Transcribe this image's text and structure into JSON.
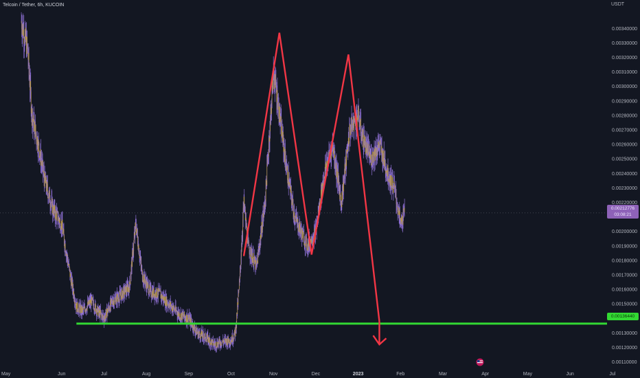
{
  "header": {
    "title": "Telcoin / Tether, 6h, KUCOIN",
    "currency": "USDT"
  },
  "badges": {
    "current_price": "0.00212776",
    "current_price_sub": "03:08:21",
    "support_price": "0.00136440"
  },
  "colors": {
    "background": "#131722",
    "candle_body": "#b99a42",
    "candle_wick": "#8d6fd1",
    "pattern_line": "#f23645",
    "support_line": "#33d933",
    "price_badge": "#8e62b8"
  },
  "chart_data": {
    "type": "candlestick",
    "title": "Telcoin / Tether, 6h, KUCOIN",
    "ylabel": "USDT",
    "ylim": [
      0.00106,
      0.00352
    ],
    "yticks": [
      "0.00110000",
      "0.00120000",
      "0.00130000",
      "0.00140000",
      "0.00150000",
      "0.00160000",
      "0.00170000",
      "0.00180000",
      "0.00190000",
      "0.00200000",
      "0.00210000",
      "0.00220000",
      "0.00230000",
      "0.00240000",
      "0.00250000",
      "0.00260000",
      "0.00270000",
      "0.00280000",
      "0.00290000",
      "0.00300000",
      "0.00310000",
      "0.00320000",
      "0.00330000",
      "0.00340000"
    ],
    "xticks": [
      {
        "label": "May",
        "bold": false
      },
      {
        "label": "Jun",
        "bold": false
      },
      {
        "label": "Jul",
        "bold": false
      },
      {
        "label": "Aug",
        "bold": false
      },
      {
        "label": "Sep",
        "bold": false
      },
      {
        "label": "Oct",
        "bold": false
      },
      {
        "label": "Nov",
        "bold": false
      },
      {
        "label": "Dec",
        "bold": false
      },
      {
        "label": "2023",
        "bold": true
      },
      {
        "label": "Feb",
        "bold": false
      },
      {
        "label": "Mar",
        "bold": false
      },
      {
        "label": "Apr",
        "bold": false
      },
      {
        "label": "May",
        "bold": false
      },
      {
        "label": "Jun",
        "bold": false
      },
      {
        "label": "Jul",
        "bold": false
      }
    ],
    "price_path": [
      {
        "t": 0.05,
        "p": 0.00345
      },
      {
        "t": 0.2,
        "p": 0.00325
      },
      {
        "t": 0.3,
        "p": 0.0028
      },
      {
        "t": 0.45,
        "p": 0.0026
      },
      {
        "t": 0.6,
        "p": 0.00235
      },
      {
        "t": 0.8,
        "p": 0.00215
      },
      {
        "t": 1.0,
        "p": 0.00205
      },
      {
        "t": 1.2,
        "p": 0.0017
      },
      {
        "t": 1.35,
        "p": 0.00148
      },
      {
        "t": 1.5,
        "p": 0.00145
      },
      {
        "t": 1.7,
        "p": 0.00152
      },
      {
        "t": 1.85,
        "p": 0.00145
      },
      {
        "t": 2.0,
        "p": 0.0014
      },
      {
        "t": 2.2,
        "p": 0.00152
      },
      {
        "t": 2.4,
        "p": 0.00156
      },
      {
        "t": 2.6,
        "p": 0.00162
      },
      {
        "t": 2.75,
        "p": 0.00205
      },
      {
        "t": 2.9,
        "p": 0.0017
      },
      {
        "t": 3.1,
        "p": 0.00158
      },
      {
        "t": 3.3,
        "p": 0.00157
      },
      {
        "t": 3.6,
        "p": 0.00148
      },
      {
        "t": 3.8,
        "p": 0.00142
      },
      {
        "t": 4.0,
        "p": 0.0014
      },
      {
        "t": 4.2,
        "p": 0.0013
      },
      {
        "t": 4.4,
        "p": 0.00127
      },
      {
        "t": 4.6,
        "p": 0.00122
      },
      {
        "t": 4.8,
        "p": 0.00124
      },
      {
        "t": 5.0,
        "p": 0.00125
      },
      {
        "t": 5.1,
        "p": 0.0013
      },
      {
        "t": 5.2,
        "p": 0.00165
      },
      {
        "t": 5.3,
        "p": 0.0022
      },
      {
        "t": 5.4,
        "p": 0.0019
      },
      {
        "t": 5.6,
        "p": 0.00175
      },
      {
        "t": 5.8,
        "p": 0.0022
      },
      {
        "t": 6.0,
        "p": 0.0031
      },
      {
        "t": 6.1,
        "p": 0.0029
      },
      {
        "t": 6.3,
        "p": 0.00245
      },
      {
        "t": 6.5,
        "p": 0.0021
      },
      {
        "t": 6.8,
        "p": 0.0019
      },
      {
        "t": 7.0,
        "p": 0.002
      },
      {
        "t": 7.2,
        "p": 0.0024
      },
      {
        "t": 7.4,
        "p": 0.0026
      },
      {
        "t": 7.6,
        "p": 0.0022
      },
      {
        "t": 7.8,
        "p": 0.0027
      },
      {
        "t": 8.0,
        "p": 0.0028
      },
      {
        "t": 8.1,
        "p": 0.00265
      },
      {
        "t": 8.3,
        "p": 0.0025
      },
      {
        "t": 8.5,
        "p": 0.0026
      },
      {
        "t": 8.7,
        "p": 0.0024
      },
      {
        "t": 8.85,
        "p": 0.0023
      },
      {
        "t": 9.0,
        "p": 0.00205
      },
      {
        "t": 9.1,
        "p": 0.00213
      }
    ],
    "pattern_polyline": [
      {
        "t": 5.3,
        "p": 0.00183
      },
      {
        "t": 6.14,
        "p": 0.00337
      },
      {
        "t": 6.9,
        "p": 0.00184
      },
      {
        "t": 7.77,
        "p": 0.00322
      },
      {
        "t": 8.5,
        "p": 0.00138
      }
    ],
    "arrow_head_t": 8.5,
    "arrow_head_p": 0.00122,
    "support_level": 0.001364,
    "support_range_t": [
      1.35,
      10.5
    ],
    "current_price": 0.00212776,
    "legend": "none",
    "grid": false
  }
}
